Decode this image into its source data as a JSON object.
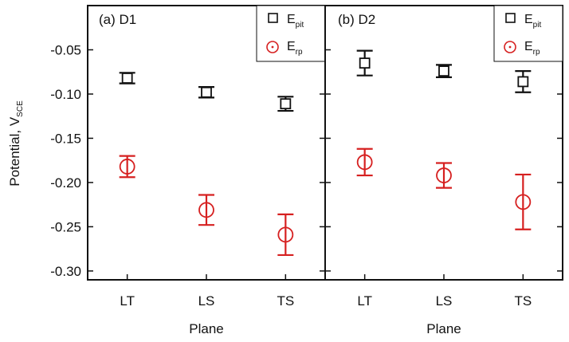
{
  "chart_data": [
    {
      "type": "scatter",
      "panel_label": "(a) D1",
      "categories": [
        "LT",
        "LS",
        "TS"
      ],
      "xlabel": "Plane",
      "ylabel": "Potential, V",
      "ylabel_subscript": "SCE",
      "ylim": [
        -0.31,
        0.0
      ],
      "y_ticks": [
        "-0.05",
        "-0.10",
        "-0.15",
        "-0.20",
        "-0.25",
        "-0.30"
      ],
      "y_tick_values": [
        -0.05,
        -0.1,
        -0.15,
        -0.2,
        -0.25,
        -0.3
      ],
      "grid": false,
      "legend_position": "top-right",
      "series": [
        {
          "name": "E",
          "subscript": "pit",
          "marker": "square",
          "color": "#111111",
          "values": [
            -0.082,
            -0.098,
            -0.111
          ],
          "errors": [
            0.006,
            0.006,
            0.008
          ]
        },
        {
          "name": "E",
          "subscript": "rp",
          "marker": "circle",
          "color": "#d62020",
          "values": [
            -0.182,
            -0.231,
            -0.259
          ],
          "errors": [
            0.012,
            0.017,
            0.023
          ]
        }
      ]
    },
    {
      "type": "scatter",
      "panel_label": "(b) D2",
      "categories": [
        "LT",
        "LS",
        "TS"
      ],
      "xlabel": "Plane",
      "ylim": [
        -0.31,
        0.0
      ],
      "grid": false,
      "legend_position": "top-right",
      "series": [
        {
          "name": "E",
          "subscript": "pit",
          "marker": "square",
          "color": "#111111",
          "values": [
            -0.065,
            -0.074,
            -0.086
          ],
          "errors": [
            0.014,
            0.007,
            0.012
          ]
        },
        {
          "name": "E",
          "subscript": "rp",
          "marker": "circle",
          "color": "#d62020",
          "values": [
            -0.177,
            -0.192,
            -0.222
          ],
          "errors": [
            0.015,
            0.014,
            0.031
          ]
        }
      ]
    }
  ]
}
